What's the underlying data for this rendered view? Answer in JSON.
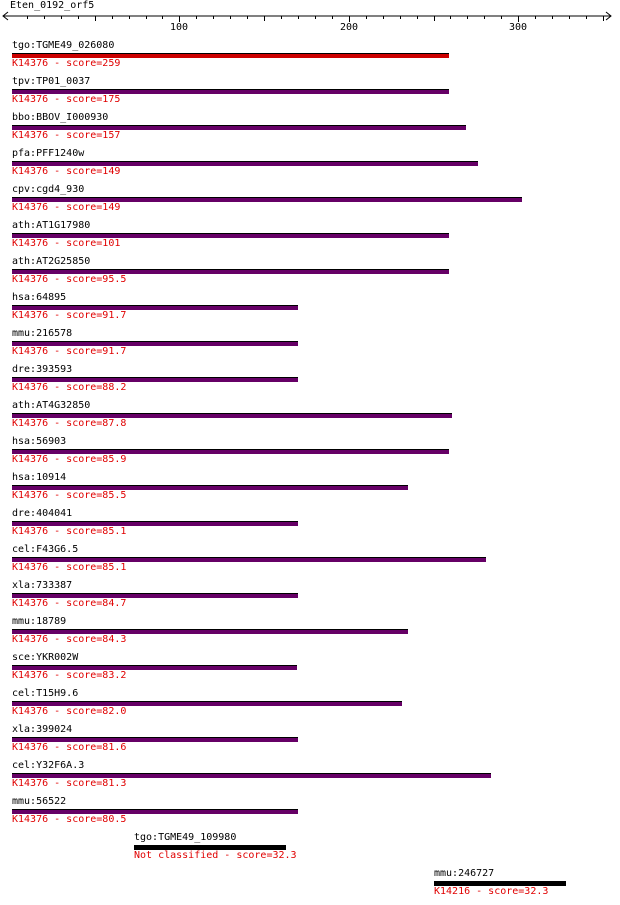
{
  "query": {
    "name": "Eten_0192_orf5",
    "axis_ticks": [
      "100",
      "200",
      "300"
    ]
  },
  "colors": {
    "top_hit": "#cc0000",
    "default_hit": "#660066",
    "other_hit": "#000000",
    "score_text": "#e00000"
  },
  "hits": [
    {
      "name": "tgo:TGME49_026080",
      "label": "K14376 - score=259",
      "start": 1,
      "end": 259,
      "type": "top"
    },
    {
      "name": "tpv:TP01_0037",
      "label": "K14376 - score=175",
      "start": 1,
      "end": 259,
      "type": "default"
    },
    {
      "name": "bbo:BBOV_I000930",
      "label": "K14376 - score=157",
      "start": 1,
      "end": 269,
      "type": "default"
    },
    {
      "name": "pfa:PFF1240w",
      "label": "K14376 - score=149",
      "start": 1,
      "end": 276,
      "type": "default"
    },
    {
      "name": "cpv:cgd4_930",
      "label": "K14376 - score=149",
      "start": 1,
      "end": 302,
      "type": "default"
    },
    {
      "name": "ath:AT1G17980",
      "label": "K14376 - score=101",
      "start": 1,
      "end": 259,
      "type": "default"
    },
    {
      "name": "ath:AT2G25850",
      "label": "K14376 - score=95.5",
      "start": 1,
      "end": 259,
      "type": "default"
    },
    {
      "name": "hsa:64895",
      "label": "K14376 - score=91.7",
      "start": 1,
      "end": 170,
      "type": "default"
    },
    {
      "name": "mmu:216578",
      "label": "K14376 - score=91.7",
      "start": 1,
      "end": 170,
      "type": "default"
    },
    {
      "name": "dre:393593",
      "label": "K14376 - score=88.2",
      "start": 1,
      "end": 170,
      "type": "default"
    },
    {
      "name": "ath:AT4G32850",
      "label": "K14376 - score=87.8",
      "start": 1,
      "end": 261,
      "type": "default"
    },
    {
      "name": "hsa:56903",
      "label": "K14376 - score=85.9",
      "start": 1,
      "end": 259,
      "type": "default"
    },
    {
      "name": "hsa:10914",
      "label": "K14376 - score=85.5",
      "start": 1,
      "end": 235,
      "type": "default"
    },
    {
      "name": "dre:404041",
      "label": "K14376 - score=85.1",
      "start": 1,
      "end": 170,
      "type": "default"
    },
    {
      "name": "cel:F43G6.5",
      "label": "K14376 - score=85.1",
      "start": 1,
      "end": 281,
      "type": "default"
    },
    {
      "name": "xla:733387",
      "label": "K14376 - score=84.7",
      "start": 1,
      "end": 170,
      "type": "default"
    },
    {
      "name": "mmu:18789",
      "label": "K14376 - score=84.3",
      "start": 1,
      "end": 235,
      "type": "default"
    },
    {
      "name": "sce:YKR002W",
      "label": "K14376 - score=83.2",
      "start": 1,
      "end": 169,
      "type": "default"
    },
    {
      "name": "cel:T15H9.6",
      "label": "K14376 - score=82.0",
      "start": 1,
      "end": 231,
      "type": "default"
    },
    {
      "name": "xla:399024",
      "label": "K14376 - score=81.6",
      "start": 1,
      "end": 170,
      "type": "default"
    },
    {
      "name": "cel:Y32F6A.3",
      "label": "K14376 - score=81.3",
      "start": 1,
      "end": 284,
      "type": "default"
    },
    {
      "name": "mmu:56522",
      "label": "K14376 - score=80.5",
      "start": 1,
      "end": 170,
      "type": "default"
    },
    {
      "name": "tgo:TGME49_109980",
      "label": "Not classified - score=32.3",
      "start": 73,
      "end": 163,
      "type": "other"
    },
    {
      "name": "mmu:246727",
      "label": "K14216 - score=32.3",
      "start": 250,
      "end": 328,
      "type": "other"
    }
  ]
}
